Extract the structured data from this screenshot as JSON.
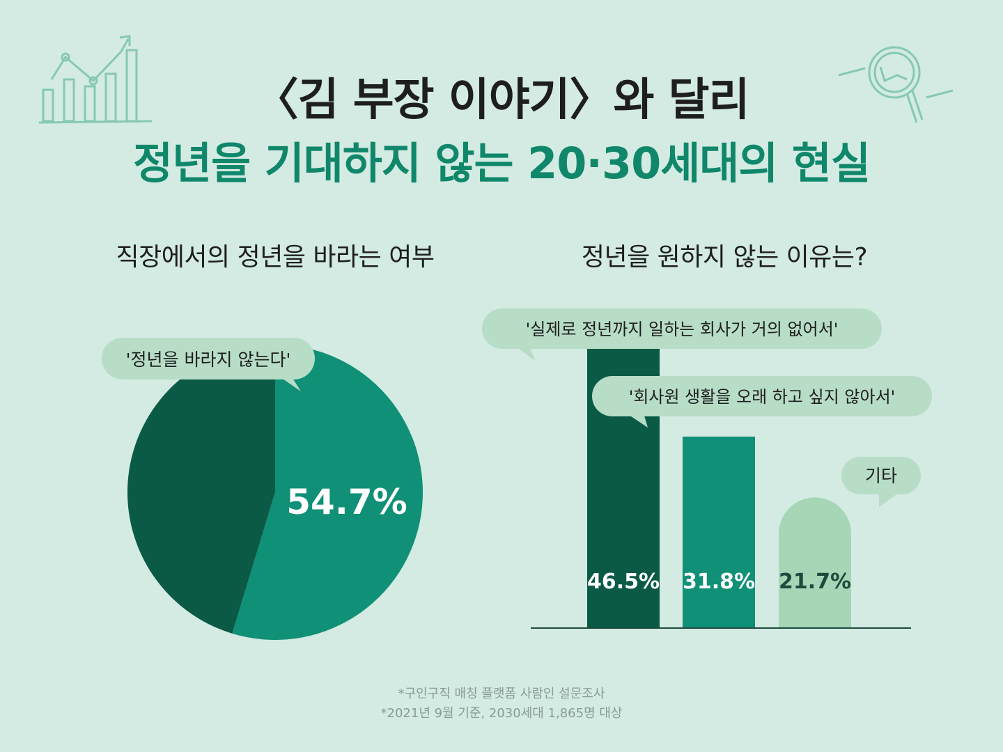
{
  "header": {
    "title_line1": "〈김 부장 이야기〉와 달리",
    "title_line2": "정년을 기대하지 않는 20·30세대의 현실"
  },
  "colors": {
    "background": "#d3ebe2",
    "dark_green": "#0b5a46",
    "mid_green": "#109076",
    "light_green": "#a6d6b6",
    "bubble": "#b7ddc7",
    "accent_title": "#10876a"
  },
  "icons": [
    "bar-chart-trend-icon",
    "magnifier-chart-icon"
  ],
  "chart_data": [
    {
      "type": "pie",
      "title": "직장에서의 정년을 바라는 여부",
      "slices": [
        {
          "label": "'정년을 바라지 않는다'",
          "value": 54.7,
          "value_label": "54.7%",
          "color": "#109076"
        },
        {
          "label": "",
          "value": 45.3,
          "value_label": "",
          "color": "#0b5a46"
        }
      ]
    },
    {
      "type": "bar",
      "title": "정년을 원하지 않는 이유는?",
      "categories": [
        "'실제로 정년까지 일하는 회사가 거의 없어서'",
        "'회사원 생활을 오래 하고 싶지 않아서'",
        "기타"
      ],
      "values": [
        46.5,
        31.8,
        21.7
      ],
      "value_labels": [
        "46.5%",
        "31.8%",
        "21.7%"
      ],
      "colors": [
        "#0b5a46",
        "#109076",
        "#a6d6b6"
      ],
      "ylim": [
        0,
        46.5
      ]
    }
  ],
  "footnotes": {
    "line1": "*구인구직 매칭 플랫폼 사람인 설문조사",
    "line2": "*2021년 9월 기준, 2030세대 1,865명 대상"
  }
}
